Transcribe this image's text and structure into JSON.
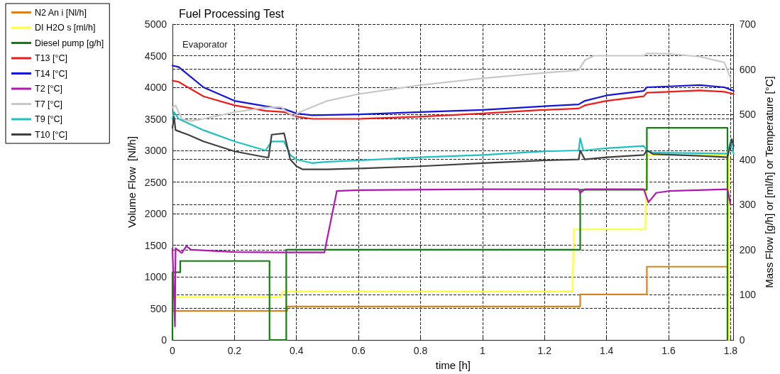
{
  "chart_data": {
    "type": "line",
    "title": "Fuel Processing Test",
    "xlabel": "time [h]",
    "ylabel": "Volume Flow  [Nl/h]",
    "y2label": "Mass Flow [g/h] or [ml/h] or Temperature [°C]",
    "xlim": [
      0,
      1.81
    ],
    "xticks": [
      0,
      0.2,
      0.4,
      0.6,
      0.8,
      1,
      1.2,
      1.4,
      1.6,
      1.8
    ],
    "ylim": [
      0,
      5000
    ],
    "yticks": [
      0,
      500,
      1000,
      1500,
      2000,
      2500,
      3000,
      3500,
      4000,
      4500,
      5000
    ],
    "y2lim": [
      0,
      700
    ],
    "y2ticks": [
      0,
      100,
      200,
      300,
      400,
      500,
      600,
      700
    ],
    "grid": true,
    "legend": "top left",
    "marker": "none",
    "line_style": "solid",
    "annotations": [
      "Evaporator"
    ],
    "series": [
      {
        "name": "N2 An i [Nl/h]",
        "color": "#d9821e",
        "x": [
          0.003,
          0.37,
          0.37,
          1.315,
          1.315,
          1.53,
          1.53,
          1.79,
          1.79
        ],
        "values": [
          460,
          460,
          530,
          530,
          720,
          720,
          1160,
          1160,
          0
        ]
      },
      {
        "name": "DI H2O s [ml/h]",
        "color": "#ffff33",
        "axis": "y2",
        "x": [
          0.003,
          0.35,
          0.355,
          1.29,
          1.295,
          1.525,
          1.53,
          1.795,
          1.795
        ],
        "values": [
          95,
          95,
          107,
          107,
          245,
          245,
          410,
          410,
          0
        ]
      },
      {
        "name": "Diesel pump [g/h]",
        "color": "#108010",
        "axis": "y2",
        "x": [
          0,
          0,
          0.025,
          0.025,
          0.313,
          0.313,
          0.367,
          0.367,
          1.315,
          1.315,
          1.53,
          1.53,
          1.79,
          1.79
        ],
        "values": [
          0,
          150,
          150,
          175,
          175,
          0,
          0,
          200,
          200,
          333,
          333,
          470,
          470,
          0
        ]
      },
      {
        "name": "T13 [°C]",
        "color": "#ee1c1c",
        "axis": "y2",
        "x": [
          0,
          0.02,
          0.1,
          0.2,
          0.3,
          0.36,
          0.4,
          0.45,
          0.6,
          0.8,
          1.0,
          1.2,
          1.31,
          1.33,
          1.4,
          1.52,
          1.53,
          1.6,
          1.7,
          1.78,
          1.81
        ],
        "values": [
          575,
          572,
          540,
          520,
          508,
          505,
          495,
          490,
          490,
          495,
          502,
          510,
          513,
          520,
          530,
          540,
          548,
          550,
          553,
          550,
          545
        ]
      },
      {
        "name": "T14 [°C]",
        "color": "#1515d8",
        "axis": "y2",
        "x": [
          0,
          0.02,
          0.1,
          0.2,
          0.3,
          0.36,
          0.4,
          0.45,
          0.6,
          0.8,
          1.0,
          1.2,
          1.31,
          1.33,
          1.4,
          1.52,
          1.53,
          1.6,
          1.7,
          1.78,
          1.81
        ],
        "values": [
          608,
          605,
          560,
          530,
          518,
          512,
          502,
          498,
          500,
          505,
          510,
          518,
          522,
          530,
          542,
          552,
          560,
          562,
          565,
          560,
          552
        ]
      },
      {
        "name": "T2 [°C]",
        "color": "#b018b0",
        "axis": "y2",
        "x": [
          0,
          0.008,
          0.01,
          0.03,
          0.045,
          0.06,
          0.2,
          0.35,
          0.49,
          0.53,
          0.6,
          1.0,
          1.31,
          1.315,
          1.33,
          1.52,
          1.535,
          1.56,
          1.6,
          1.79,
          1.8
        ],
        "values": [
          203,
          30,
          203,
          193,
          208,
          200,
          195,
          194,
          194,
          330,
          332,
          334,
          334,
          326,
          334,
          334,
          305,
          326,
          330,
          334,
          300
        ]
      },
      {
        "name": "T7 [°C]",
        "color": "#c8c8c8",
        "axis": "y2",
        "x": [
          0,
          0.01,
          0.03,
          0.06,
          0.1,
          0.2,
          0.3,
          0.35,
          0.37,
          0.39,
          0.41,
          0.5,
          0.6,
          0.8,
          1.0,
          1.2,
          1.31,
          1.33,
          1.36,
          1.52,
          1.53,
          1.6,
          1.7,
          1.78,
          1.8
        ],
        "values": [
          515,
          520,
          490,
          485,
          490,
          505,
          515,
          516,
          505,
          495,
          505,
          530,
          545,
          565,
          580,
          592,
          598,
          620,
          630,
          630,
          635,
          634,
          628,
          615,
          580
        ]
      },
      {
        "name": "T9 [°C]",
        "color": "#20c0c0",
        "axis": "y2",
        "x": [
          0,
          0.005,
          0.02,
          0.1,
          0.2,
          0.3,
          0.32,
          0.36,
          0.38,
          0.4,
          0.45,
          0.5,
          0.6,
          0.8,
          1.0,
          1.2,
          1.31,
          1.315,
          1.325,
          1.4,
          1.52,
          1.53,
          1.55,
          1.7,
          1.79,
          1.8,
          1.81
        ],
        "values": [
          490,
          505,
          490,
          465,
          440,
          420,
          440,
          440,
          410,
          400,
          392,
          395,
          398,
          405,
          410,
          418,
          420,
          447,
          420,
          425,
          430,
          420,
          415,
          414,
          413,
          440,
          412
        ]
      },
      {
        "name": "T10 [°C]",
        "color": "#404040",
        "axis": "y2",
        "x": [
          0,
          0.005,
          0.01,
          0.05,
          0.1,
          0.2,
          0.3,
          0.31,
          0.32,
          0.36,
          0.38,
          0.4,
          0.42,
          0.5,
          0.6,
          0.8,
          1.0,
          1.2,
          1.31,
          1.315,
          1.33,
          1.4,
          1.52,
          1.53,
          1.55,
          1.7,
          1.79,
          1.797,
          1.804,
          1.81
        ],
        "values": [
          470,
          495,
          465,
          455,
          440,
          418,
          405,
          405,
          455,
          458,
          400,
          385,
          378,
          378,
          380,
          385,
          392,
          398,
          400,
          420,
          400,
          405,
          410,
          420,
          412,
          408,
          405,
          425,
          445,
          430
        ]
      }
    ]
  }
}
